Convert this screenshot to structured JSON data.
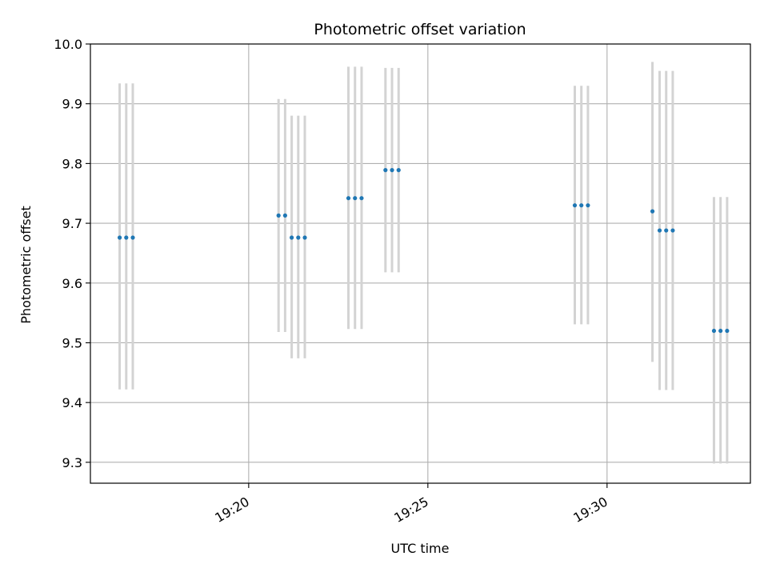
{
  "chart_data": {
    "type": "scatter",
    "title": "Photometric offset variation",
    "xlabel": "UTC time",
    "ylabel": "Photometric offset",
    "x_axis_type": "time",
    "xlim": [
      "19:15:35",
      "19:34:00"
    ],
    "ylim": [
      9.265,
      10.0
    ],
    "x_ticks": [
      "19:20",
      "19:25",
      "19:30"
    ],
    "y_ticks": [
      9.3,
      9.4,
      9.5,
      9.6,
      9.7,
      9.8,
      9.9,
      10.0
    ],
    "y_tick_labels": [
      "9.3",
      "9.4",
      "9.5",
      "9.6",
      "9.7",
      "9.8",
      "9.9",
      "10.0"
    ],
    "grid": true,
    "marker_color": "#1f77b4",
    "errorbar_color": "#d3d3d3",
    "series": [
      {
        "points": [
          {
            "x": "19:16:24",
            "y": 9.676,
            "ylow": 9.422,
            "yhigh": 9.934
          },
          {
            "x": "19:16:35",
            "y": 9.676,
            "ylow": 9.422,
            "yhigh": 9.934
          },
          {
            "x": "19:16:46",
            "y": 9.676,
            "ylow": 9.422,
            "yhigh": 9.934
          },
          {
            "x": "19:20:50",
            "y": 9.713,
            "ylow": 9.518,
            "yhigh": 9.908
          },
          {
            "x": "19:21:01",
            "y": 9.713,
            "ylow": 9.518,
            "yhigh": 9.908
          },
          {
            "x": "19:21:12",
            "y": 9.676,
            "ylow": 9.474,
            "yhigh": 9.88
          },
          {
            "x": "19:21:23",
            "y": 9.676,
            "ylow": 9.474,
            "yhigh": 9.88
          },
          {
            "x": "19:21:34",
            "y": 9.676,
            "ylow": 9.474,
            "yhigh": 9.88
          },
          {
            "x": "19:22:47",
            "y": 9.742,
            "ylow": 9.523,
            "yhigh": 9.962
          },
          {
            "x": "19:22:58",
            "y": 9.742,
            "ylow": 9.523,
            "yhigh": 9.962
          },
          {
            "x": "19:23:09",
            "y": 9.742,
            "ylow": 9.523,
            "yhigh": 9.962
          },
          {
            "x": "19:23:49",
            "y": 9.789,
            "ylow": 9.618,
            "yhigh": 9.96
          },
          {
            "x": "19:24:00",
            "y": 9.789,
            "ylow": 9.618,
            "yhigh": 9.96
          },
          {
            "x": "19:24:11",
            "y": 9.789,
            "ylow": 9.618,
            "yhigh": 9.96
          },
          {
            "x": "19:29:06",
            "y": 9.73,
            "ylow": 9.531,
            "yhigh": 9.93
          },
          {
            "x": "19:29:17",
            "y": 9.73,
            "ylow": 9.531,
            "yhigh": 9.93
          },
          {
            "x": "19:29:28",
            "y": 9.73,
            "ylow": 9.531,
            "yhigh": 9.93
          },
          {
            "x": "19:31:16",
            "y": 9.72,
            "ylow": 9.468,
            "yhigh": 9.97
          },
          {
            "x": "19:31:28",
            "y": 9.688,
            "ylow": 9.421,
            "yhigh": 9.955
          },
          {
            "x": "19:31:39",
            "y": 9.688,
            "ylow": 9.421,
            "yhigh": 9.955
          },
          {
            "x": "19:31:50",
            "y": 9.688,
            "ylow": 9.421,
            "yhigh": 9.955
          },
          {
            "x": "19:32:59",
            "y": 9.52,
            "ylow": 9.298,
            "yhigh": 9.744
          },
          {
            "x": "19:33:10",
            "y": 9.52,
            "ylow": 9.298,
            "yhigh": 9.744
          },
          {
            "x": "19:33:21",
            "y": 9.52,
            "ylow": 9.298,
            "yhigh": 9.744
          }
        ]
      }
    ]
  }
}
